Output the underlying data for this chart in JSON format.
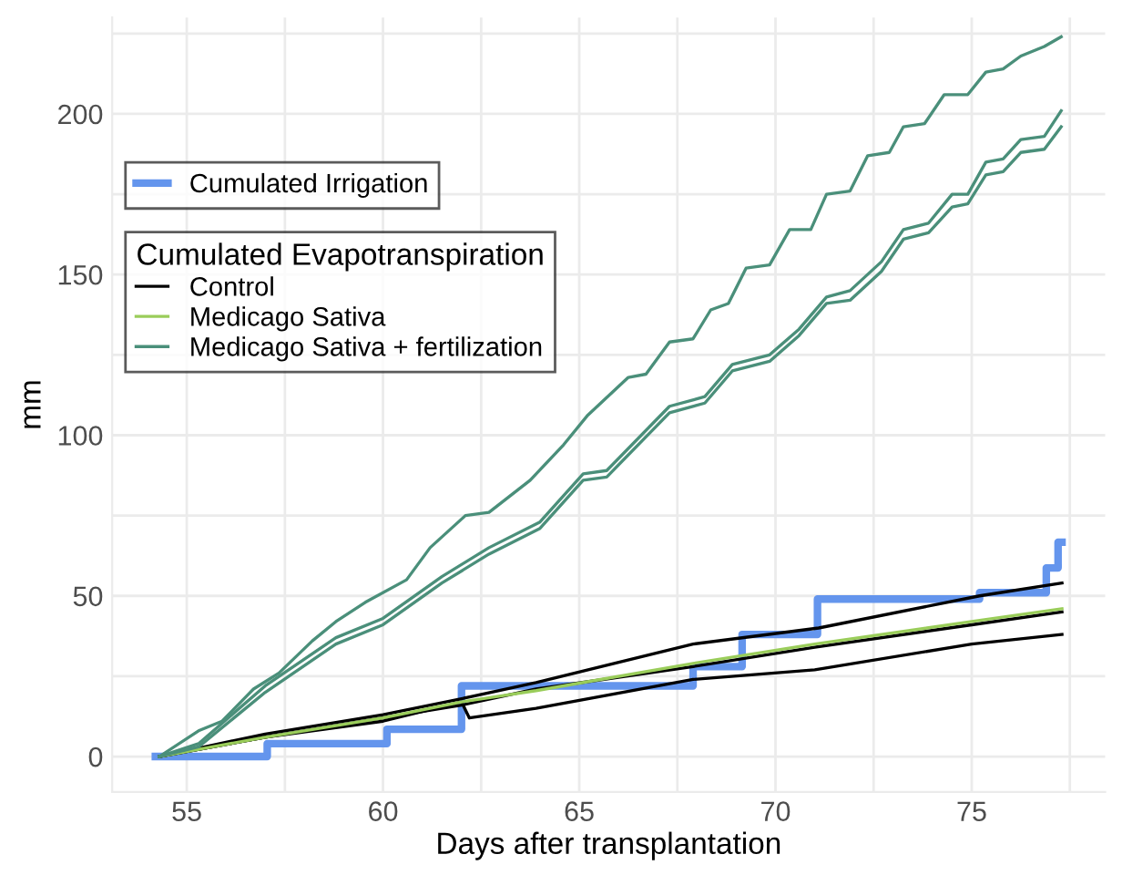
{
  "chart_data": {
    "type": "line",
    "xlabel": "Days after transplantation",
    "ylabel": "mm",
    "legend_title": "Cumulated Evapotranspiration",
    "legend": "top left",
    "grid": true,
    "xlim": [
      53.1,
      78.4
    ],
    "ylim": [
      -11,
      230
    ],
    "xticks": [
      55,
      {
        "value": 57.5,
        "label": null
      },
      60,
      {
        "value": 62.5,
        "label": null
      },
      65,
      {
        "value": 67.5,
        "label": null
      },
      70,
      {
        "value": 72.5,
        "label": null
      },
      75,
      {
        "value": 77.5,
        "label": null
      }
    ],
    "yticks": [
      0,
      {
        "value": 25,
        "label": null
      },
      50,
      {
        "value": 75,
        "label": null
      },
      100,
      {
        "value": 125,
        "label": null
      },
      150,
      {
        "value": 175,
        "label": null
      },
      200,
      {
        "value": 225,
        "label": null
      }
    ],
    "series": [
      {
        "name": "Cumulated Irrigation",
        "type": "step",
        "color": "#6495ed",
        "x": [
          54.2,
          57.05,
          60.1,
          62.0,
          67.9,
          69.15,
          71.07,
          75.2,
          76.9,
          77.2,
          77.3
        ],
        "values": [
          0,
          4,
          8.5,
          22,
          28,
          38,
          49,
          51,
          58.7,
          66.7,
          66.7
        ]
      },
      {
        "name": "Control",
        "color": "#000000",
        "x": [
          54.3,
          57,
          60,
          62,
          63.9,
          67.9,
          71.1,
          75.2,
          77.3
        ],
        "values": [
          0,
          7,
          13,
          18,
          23,
          35,
          40,
          50,
          54
        ]
      },
      {
        "color": "#000000",
        "x": [
          54.3,
          57,
          60,
          62,
          63.9,
          67.9,
          71,
          75,
          77.3
        ],
        "values": [
          0,
          6,
          12,
          16,
          21,
          28,
          34,
          41,
          45
        ]
      },
      {
        "color": "#000000",
        "x": [
          54.3,
          57,
          60,
          62,
          62.2,
          63.9,
          67.9,
          71,
          75,
          77.3
        ],
        "values": [
          0,
          6,
          11,
          17,
          12,
          15,
          24,
          27,
          35,
          38
        ]
      },
      {
        "name": "Medicago Sativa",
        "color": "#9acd5a",
        "x": [
          54.3,
          57,
          60,
          62,
          63.9,
          67.9,
          71,
          75,
          77.3
        ],
        "values": [
          0,
          6,
          12,
          17,
          20.5,
          29,
          35,
          42,
          46
        ]
      },
      {
        "name": "Medicago Sativa + fertilization",
        "color": "#4a8f7a",
        "x": [
          54.3,
          55.3,
          55.9,
          56.7,
          57.35,
          58.2,
          58.8,
          59.55,
          60.6,
          61.2,
          62.1,
          62.7,
          63.75,
          64.6,
          65.2,
          66.25,
          66.7,
          67.3,
          67.9,
          68.35,
          68.8,
          69.25,
          69.85,
          70.36,
          70.9,
          71.3,
          71.9,
          72.35,
          72.9,
          73.26,
          73.8,
          74.3,
          74.9,
          75.36,
          75.8,
          76.25,
          76.85,
          77.28
        ],
        "values": [
          0,
          8,
          11,
          21,
          26,
          36,
          42,
          48,
          55,
          65,
          75,
          76,
          86,
          97,
          106,
          118,
          119,
          129,
          130,
          139,
          141,
          152,
          153,
          164,
          164,
          175,
          176,
          187,
          188,
          196,
          197,
          206,
          206,
          213,
          214,
          218,
          221,
          224
        ]
      },
      {
        "color": "#4a8f7a",
        "x": [
          54.3,
          55.3,
          57,
          58.8,
          60,
          61.5,
          62.7,
          64.0,
          65.1,
          65.7,
          67.3,
          68.2,
          68.9,
          69.85,
          70.6,
          71.3,
          71.9,
          72.7,
          73.26,
          73.9,
          74.5,
          74.9,
          75.36,
          75.8,
          76.25,
          76.85,
          77.28
        ],
        "values": [
          0,
          4,
          22,
          37,
          43,
          56,
          65,
          73,
          88,
          89,
          109,
          112,
          122,
          125,
          133,
          143,
          145,
          154,
          164,
          166,
          175,
          175,
          185,
          186,
          192,
          193,
          201
        ]
      },
      {
        "color": "#4a8f7a",
        "x": [
          54.3,
          55.3,
          57,
          58.8,
          60,
          61.5,
          62.7,
          64.0,
          65.1,
          65.7,
          67.3,
          68.2,
          68.9,
          69.85,
          70.6,
          71.3,
          71.9,
          72.7,
          73.26,
          73.9,
          74.5,
          74.9,
          75.36,
          75.8,
          76.25,
          76.85,
          77.28
        ],
        "values": [
          0,
          3,
          20,
          35,
          41,
          54,
          63,
          71,
          86,
          87,
          107,
          110,
          120,
          123,
          131,
          141,
          142,
          151,
          161,
          163,
          171,
          172,
          181,
          182,
          188,
          189,
          196
        ]
      }
    ]
  }
}
